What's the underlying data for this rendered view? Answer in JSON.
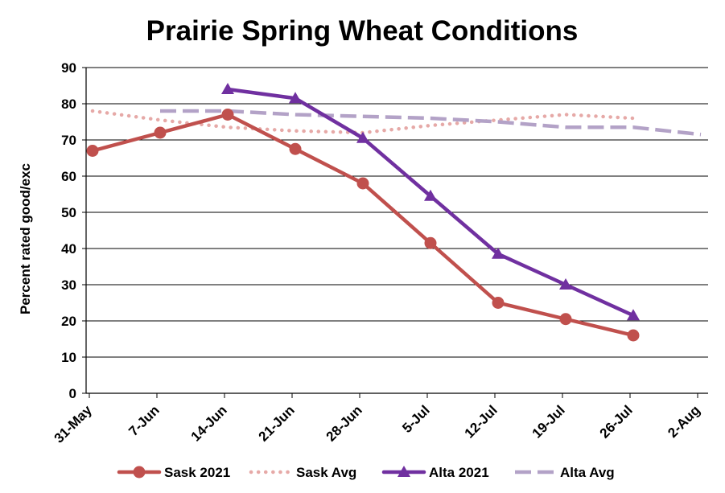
{
  "chart_data": {
    "type": "line",
    "title": "Prairie Spring Wheat Conditions",
    "xlabel": "",
    "ylabel": "Percent rated good/exc",
    "categories": [
      "31-May",
      "7-Jun",
      "14-Jun",
      "21-Jun",
      "28-Jun",
      "5-Jul",
      "12-Jul",
      "19-Jul",
      "26-Jul",
      "2-Aug"
    ],
    "ylim": [
      0,
      90
    ],
    "yticks": [
      0,
      10,
      20,
      30,
      40,
      50,
      60,
      70,
      80,
      90
    ],
    "grid": "horizontal",
    "legend": "bottom",
    "series": [
      {
        "name": "Sask 2021",
        "style": "solid",
        "marker": "circle",
        "color": "#C0504D",
        "values": [
          67,
          72,
          77,
          67.5,
          58,
          41.5,
          25,
          20.5,
          16,
          null
        ]
      },
      {
        "name": "Sask Avg",
        "style": "dotted",
        "marker": "none",
        "color": "#E6A9A7",
        "values": [
          78,
          75.5,
          73.5,
          72.5,
          72,
          74,
          75.5,
          77,
          76,
          null
        ]
      },
      {
        "name": "Alta 2021",
        "style": "solid",
        "marker": "triangle",
        "color": "#7030A0",
        "values": [
          null,
          null,
          84,
          81.5,
          70.5,
          54.5,
          38.5,
          30,
          21.5,
          null
        ]
      },
      {
        "name": "Alta Avg",
        "style": "dashed",
        "marker": "none",
        "color": "#B3A2C7",
        "values": [
          null,
          78,
          78,
          77,
          76.5,
          76,
          75,
          73.5,
          73.5,
          71.5
        ]
      }
    ]
  }
}
